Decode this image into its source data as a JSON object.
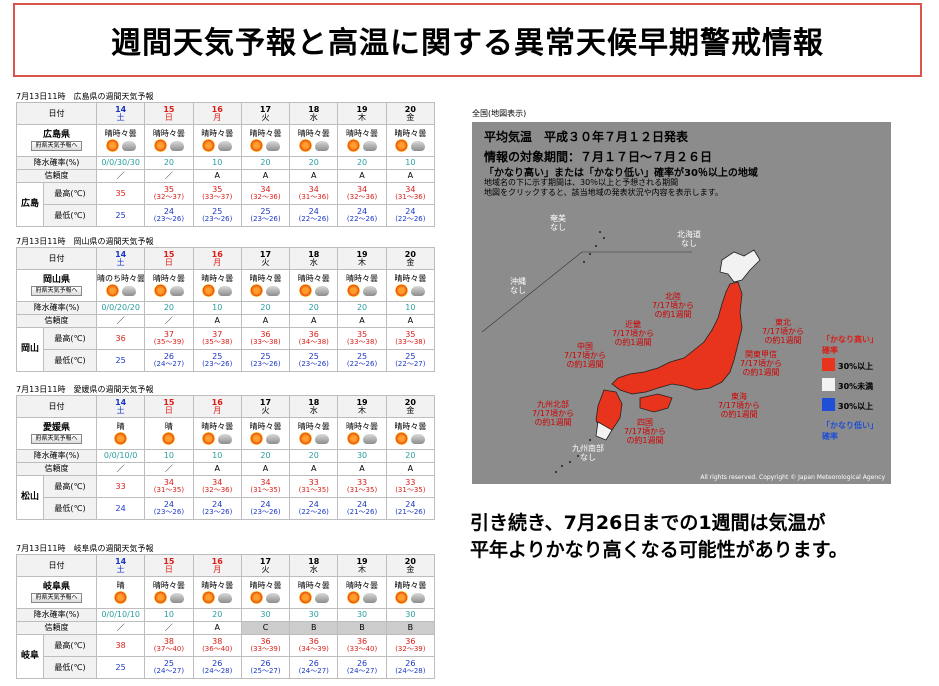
{
  "title": "週間天気予報と高温に関する異常天候早期警戒情報",
  "labels": {
    "date": "日付",
    "pop": "降水確率(%)",
    "reliability": "信頼度",
    "max": "最高(℃)",
    "min": "最低(℃)",
    "pref_button": "府県天気予報へ"
  },
  "days": [
    {
      "num": "14",
      "dow": "土",
      "cls": "blue"
    },
    {
      "num": "15",
      "dow": "日",
      "cls": "red"
    },
    {
      "num": "16",
      "dow": "月",
      "cls": "red"
    },
    {
      "num": "17",
      "dow": "火",
      "cls": ""
    },
    {
      "num": "18",
      "dow": "水",
      "cls": ""
    },
    {
      "num": "19",
      "dow": "木",
      "cls": ""
    },
    {
      "num": "20",
      "dow": "金",
      "cls": ""
    }
  ],
  "forecasts": [
    {
      "caption": "7月13日11時　広島県の週間天気予報",
      "pref": "広島県",
      "city": "広島",
      "weather": [
        "晴時々曇",
        "晴時々曇",
        "晴時々曇",
        "晴時々曇",
        "晴時々曇",
        "晴時々曇",
        "晴時々曇"
      ],
      "pop": [
        "0/0/30/30",
        "20",
        "10",
        "20",
        "20",
        "20",
        "10"
      ],
      "rel": [
        "／",
        "／",
        "A",
        "A",
        "A",
        "A",
        "A"
      ],
      "max": [
        "35",
        "35",
        "35",
        "34",
        "34",
        "34",
        "34"
      ],
      "max_rng": [
        "",
        "(32〜37)",
        "(33〜37)",
        "(32〜36)",
        "(31〜36)",
        "(32〜36)",
        "(31〜36)"
      ],
      "min": [
        "25",
        "24",
        "25",
        "25",
        "24",
        "24",
        "24"
      ],
      "min_rng": [
        "",
        "(23〜26)",
        "(23〜26)",
        "(23〜26)",
        "(22〜26)",
        "(22〜26)",
        "(22〜26)"
      ]
    },
    {
      "caption": "7月13日11時　岡山県の週間天気予報",
      "pref": "岡山県",
      "city": "岡山",
      "weather": [
        "晴のち時々曇",
        "晴時々曇",
        "晴時々曇",
        "晴時々曇",
        "晴時々曇",
        "晴時々曇",
        "晴時々曇"
      ],
      "pop": [
        "0/0/20/20",
        "20",
        "10",
        "20",
        "20",
        "20",
        "10"
      ],
      "rel": [
        "／",
        "／",
        "A",
        "A",
        "A",
        "A",
        "A"
      ],
      "max": [
        "36",
        "37",
        "37",
        "36",
        "36",
        "35",
        "35"
      ],
      "max_rng": [
        "",
        "(35〜39)",
        "(35〜38)",
        "(33〜38)",
        "(34〜38)",
        "(33〜38)",
        "(33〜38)"
      ],
      "min": [
        "25",
        "26",
        "25",
        "25",
        "25",
        "25",
        "25"
      ],
      "min_rng": [
        "",
        "(24〜27)",
        "(23〜26)",
        "(23〜26)",
        "(23〜26)",
        "(22〜26)",
        "(22〜27)"
      ]
    },
    {
      "caption": "7月13日11時　愛媛県の週間天気予報",
      "pref": "愛媛県",
      "city": "松山",
      "weather": [
        "晴",
        "晴",
        "晴時々曇",
        "晴時々曇",
        "晴時々曇",
        "晴時々曇",
        "晴時々曇"
      ],
      "pop": [
        "0/0/10/0",
        "10",
        "10",
        "20",
        "20",
        "30",
        "20"
      ],
      "rel": [
        "／",
        "／",
        "A",
        "A",
        "A",
        "A",
        "A"
      ],
      "max": [
        "33",
        "34",
        "34",
        "34",
        "33",
        "33",
        "33"
      ],
      "max_rng": [
        "",
        "(31〜35)",
        "(32〜36)",
        "(31〜35)",
        "(31〜35)",
        "(31〜35)",
        "(31〜35)"
      ],
      "min": [
        "24",
        "24",
        "24",
        "24",
        "24",
        "24",
        "24"
      ],
      "min_rng": [
        "",
        "(23〜26)",
        "(23〜26)",
        "(23〜26)",
        "(22〜26)",
        "(21〜26)",
        "(21〜26)"
      ]
    },
    {
      "caption": "7月13日11時　岐阜県の週間天気予報",
      "pref": "岐阜県",
      "city": "岐阜",
      "weather": [
        "晴",
        "晴時々曇",
        "晴時々曇",
        "晴時々曇",
        "晴時々曇",
        "晴時々曇",
        "晴時々曇"
      ],
      "pop": [
        "0/0/10/10",
        "10",
        "20",
        "30",
        "30",
        "30",
        "30"
      ],
      "rel": [
        "／",
        "／",
        "A",
        "C",
        "B",
        "B",
        "B"
      ],
      "max": [
        "38",
        "38",
        "38",
        "36",
        "36",
        "36",
        "36"
      ],
      "max_rng": [
        "",
        "(37〜40)",
        "(36〜40)",
        "(33〜39)",
        "(34〜39)",
        "(33〜40)",
        "(32〜39)"
      ],
      "min": [
        "25",
        "25",
        "26",
        "26",
        "26",
        "26",
        "26"
      ],
      "min_rng": [
        "",
        "(24〜27)",
        "(24〜28)",
        "(25〜27)",
        "(24〜27)",
        "(24〜27)",
        "(24〜28)"
      ]
    }
  ],
  "map": {
    "caption": "全国(地図表示)",
    "head1": "平均気温　平成３０年７月１２日発表",
    "head2": "情報の対象期間：７月１７日〜７月２６日",
    "head3": "「かなり高い」または「かなり低い」確率が30％以上の地域",
    "head4": "地域名の下に示す期間は、30％以上と予想される期間",
    "head5": "地図をクリックすると、該当地域の発表状況や内容を表示します。",
    "regions": [
      {
        "name": "奄美",
        "period": "なし",
        "type": "w"
      },
      {
        "name": "北海道",
        "period": "なし",
        "type": "w"
      },
      {
        "name": "沖縄",
        "period": "なし",
        "type": "w"
      },
      {
        "name": "北陸",
        "period": "7/17頃から\nの約1週間",
        "type": "r"
      },
      {
        "name": "近畿",
        "period": "7/17頃から\nの約1週間",
        "type": "r"
      },
      {
        "name": "東北",
        "period": "7/17頃から\nの約1週間",
        "type": "r"
      },
      {
        "name": "中国",
        "period": "7/17頃から\nの約1週間",
        "type": "r"
      },
      {
        "name": "関東甲信",
        "period": "7/17頃から\nの約1週間",
        "type": "r"
      },
      {
        "name": "九州北部",
        "period": "7/17頃から\nの約1週間",
        "type": "r"
      },
      {
        "name": "東海",
        "period": "7/17頃から\nの約1週間",
        "type": "r"
      },
      {
        "name": "四国",
        "period": "7/17頃から\nの約1週間",
        "type": "r"
      },
      {
        "name": "九州南部",
        "period": "なし",
        "type": "w"
      }
    ],
    "legend": {
      "high": "「かなり高い」\n確率",
      "p30": "30%以上",
      "under": "30%未満",
      "p30b": "30%以上",
      "low": "「かなり低い」\n確率"
    },
    "colors": {
      "high": "#e8341c",
      "low": "#1f4fd6",
      "neutral": "#f2f2f2"
    },
    "copyright": "All rights reserved. Copyright © Japan Meteorological Agency"
  },
  "note_line1": "引き続き、7月26日までの1週間は気温が",
  "note_line2": "平年よりかなり高くなる可能性があります。"
}
